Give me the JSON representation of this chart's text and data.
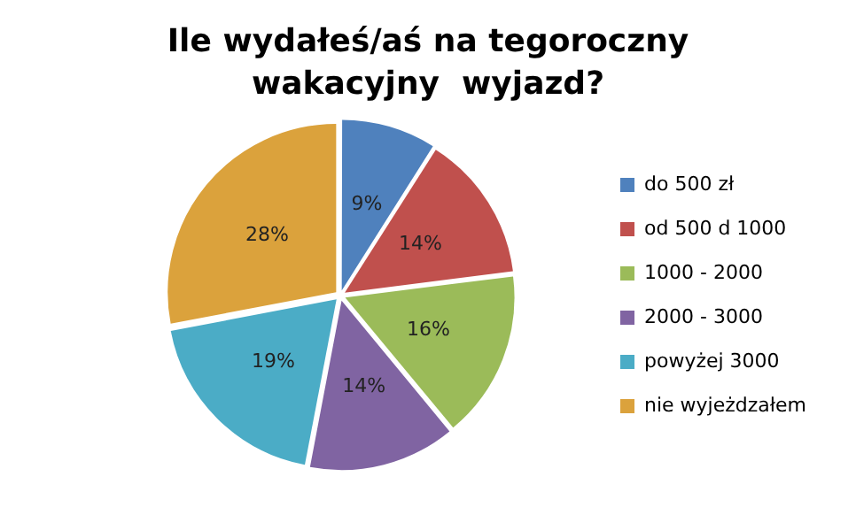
{
  "chart_data": {
    "type": "pie",
    "title": "Ile wydałeś/aś na tegoroczny wakacyjny  wyjazd?",
    "categories": [
      "do 500 zł",
      "od 500 d 1000",
      "1000 - 2000",
      "2000 - 3000",
      "powyżej 3000",
      "nie wyjeżdzałem"
    ],
    "values": [
      9,
      14,
      16,
      14,
      19,
      28
    ],
    "colors": [
      "#4f81bd",
      "#c0504d",
      "#9bbb59",
      "#8064a2",
      "#4bacc6",
      "#dba23c"
    ],
    "value_labels": [
      "9%",
      "14%",
      "16%",
      "14%",
      "19%",
      "28%"
    ],
    "legend": "right"
  }
}
